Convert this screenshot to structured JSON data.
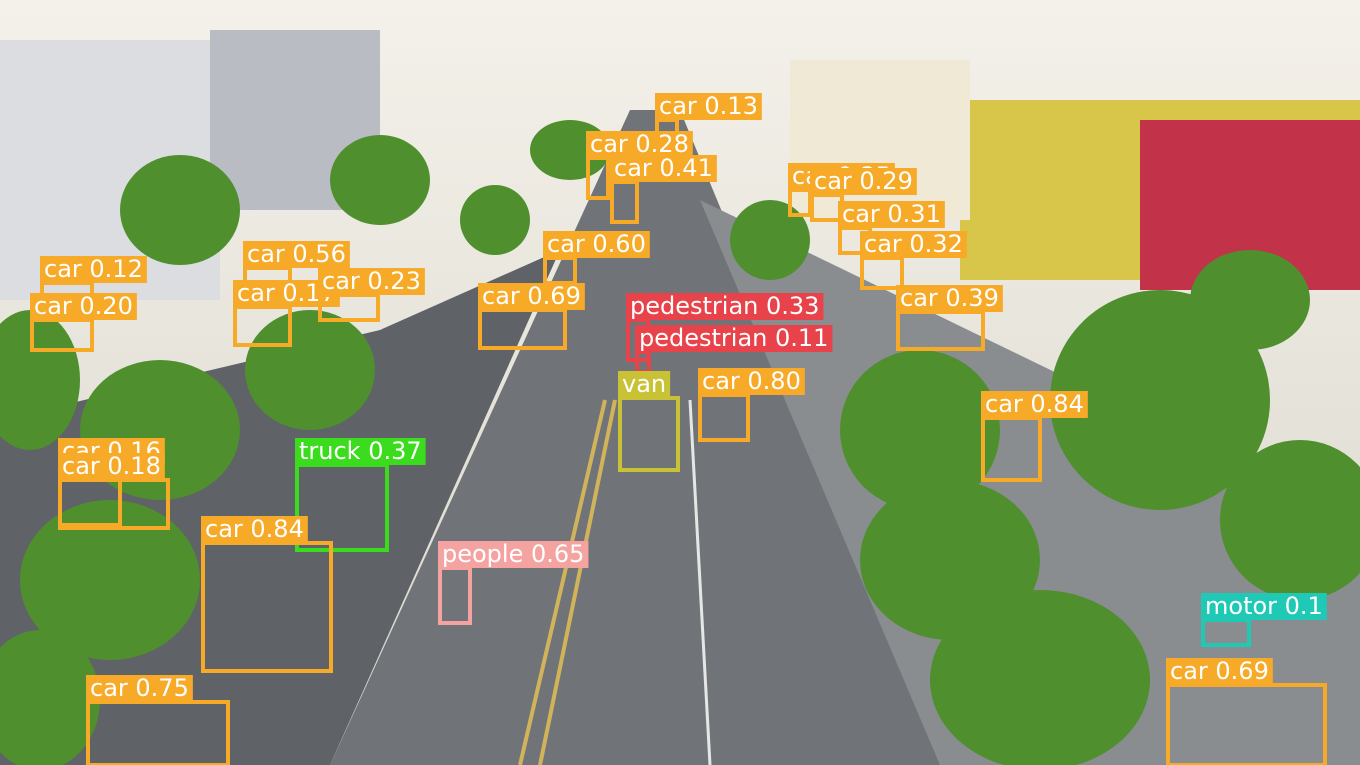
{
  "detections": [
    {
      "label": "car 0.13",
      "color": "#f7a928"
    },
    {
      "label": "car 0.28",
      "color": "#f7a928"
    },
    {
      "label": "car 0.41",
      "color": "#f7a928"
    },
    {
      "label": "car 0.35",
      "color": "#f7a928"
    },
    {
      "label": "car 0.29",
      "color": "#f7a928"
    },
    {
      "label": "car 0.31",
      "color": "#f7a928"
    },
    {
      "label": "car 0.32",
      "color": "#f7a928"
    },
    {
      "label": "car 0.60",
      "color": "#f7a928"
    },
    {
      "label": "car 0.56",
      "color": "#f7a928"
    },
    {
      "label": "car 0.12",
      "color": "#f7a928"
    },
    {
      "label": "car 0.20",
      "color": "#f7a928"
    },
    {
      "label": "car 0.17",
      "color": "#f7a928"
    },
    {
      "label": "car 0.23",
      "color": "#f7a928"
    },
    {
      "label": "car 0.69",
      "color": "#f7a928"
    },
    {
      "label": "car 0.39",
      "color": "#f7a928"
    },
    {
      "label": "pedestrian 0.33",
      "color": "#e8424a"
    },
    {
      "label": "pedestrian 0.11",
      "color": "#e8424a"
    },
    {
      "label": "van",
      "color": "#c9c236"
    },
    {
      "label": "car 0.80",
      "color": "#f7a928"
    },
    {
      "label": "car 0.84",
      "color": "#f7a928"
    },
    {
      "label": "truck 0.37",
      "color": "#3bdc1e"
    },
    {
      "label": "car 0.16",
      "color": "#f7a928"
    },
    {
      "label": "car 0.18",
      "color": "#f7a928"
    },
    {
      "label": "car 0.84",
      "color": "#f7a928"
    },
    {
      "label": "people 0.65",
      "color": "#f5a3a0"
    },
    {
      "label": "motor 0.1",
      "color": "#20c9b5"
    },
    {
      "label": "car 0.75",
      "color": "#f7a928"
    },
    {
      "label": "car 0.69",
      "color": "#f7a928"
    }
  ]
}
